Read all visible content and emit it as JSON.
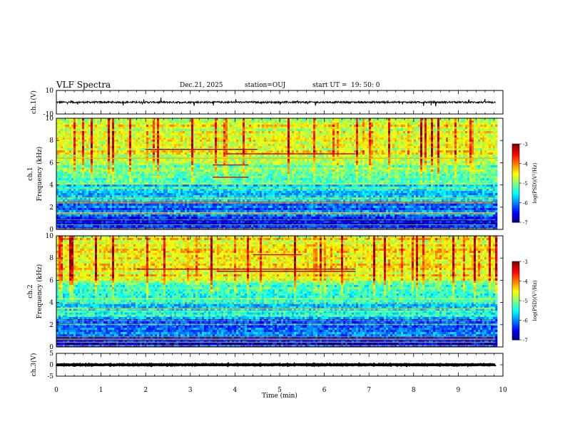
{
  "header": {
    "title": "VLF Spectra",
    "date": "Dec.21, 2025",
    "station": "station=OUJ",
    "start_label": "start UT =",
    "start_time": "19: 50: 0"
  },
  "chart_data": [
    {
      "type": "line",
      "panel": "ch1-waveform",
      "ylabel": "ch.1(V)",
      "ylim": [
        -10,
        10
      ],
      "yticks": [
        "10",
        "-10"
      ],
      "xlim": [
        0,
        10
      ],
      "data_xrange": [
        0,
        9.83
      ],
      "baseline": 0,
      "noise_amplitude": 1.5
    },
    {
      "type": "heatmap",
      "panel": "ch1-spectrogram",
      "ylabel_line1": "ch.1",
      "ylabel_line2": "Frequency (kHz)",
      "ylim": [
        0,
        10
      ],
      "yticks": [
        "0",
        "2",
        "4",
        "6",
        "8",
        "10"
      ],
      "xlim": [
        0,
        10
      ],
      "data_xrange": [
        0,
        9.83
      ],
      "colorbar": {
        "label": "log(PSD)(V²/Hz)",
        "min": -7,
        "max": -3,
        "ticks": [
          "-3",
          "-4",
          "-5",
          "-6",
          "-7"
        ]
      },
      "band_psd": [
        {
          "f_range": [
            0,
            1
          ],
          "psd": -6.5
        },
        {
          "f_range": [
            1,
            2.5
          ],
          "psd": -6.1
        },
        {
          "f_range": [
            2.5,
            4
          ],
          "psd": -5.6
        },
        {
          "f_range": [
            4,
            6
          ],
          "psd": -5.1
        },
        {
          "f_range": [
            6,
            10
          ],
          "psd": -4.6
        }
      ],
      "tonal_lines": [
        {
          "f": 7.2,
          "t_range": [
            2.0,
            4.5
          ],
          "psd": -3.2
        },
        {
          "f": 6.8,
          "t_range": [
            3.8,
            6.7
          ],
          "psd": -3.3
        },
        {
          "f": 5.8,
          "t_range": [
            3.5,
            4.3
          ],
          "psd": -3.4
        },
        {
          "f": 4.7,
          "t_range": [
            3.5,
            4.3
          ],
          "psd": -3.4
        },
        {
          "f": 6.4,
          "t_range": [
            0,
            9.83
          ],
          "psd": -4.2
        }
      ]
    },
    {
      "type": "heatmap",
      "panel": "ch2-spectrogram",
      "ylabel_line1": "ch.2",
      "ylabel_line2": "Frequency (kHz)",
      "ylim": [
        0,
        10
      ],
      "yticks": [
        "0",
        "2",
        "4",
        "6",
        "8",
        "10"
      ],
      "xlim": [
        0,
        10
      ],
      "data_xrange": [
        0,
        9.83
      ],
      "colorbar": {
        "label": "log(PSD)(V²/Hz)",
        "min": -7,
        "max": -3,
        "ticks": [
          "-3",
          "-4",
          "-5",
          "-6",
          "-7"
        ]
      },
      "band_psd": [
        {
          "f_range": [
            0,
            1
          ],
          "psd": -6.5
        },
        {
          "f_range": [
            1,
            2.5
          ],
          "psd": -6.1
        },
        {
          "f_range": [
            2.5,
            4
          ],
          "psd": -5.6
        },
        {
          "f_range": [
            4,
            6
          ],
          "psd": -5.2
        },
        {
          "f_range": [
            6,
            10
          ],
          "psd": -4.5
        }
      ],
      "tonal_lines": [
        {
          "f": 7.0,
          "t_range": [
            1.8,
            6.7
          ],
          "psd": -3.3
        },
        {
          "f": 6.8,
          "t_range": [
            3.6,
            6.7
          ],
          "psd": -3.2
        },
        {
          "f": 8.3,
          "t_range": [
            4.4,
            5.5
          ],
          "psd": -3.4
        },
        {
          "f": 3.5,
          "t_range": [
            0,
            0.7
          ],
          "psd": -4.8
        },
        {
          "f": 3.5,
          "t_range": [
            9.3,
            9.83
          ],
          "psd": -4.8
        }
      ]
    },
    {
      "type": "line",
      "panel": "ch3-waveform",
      "ylabel": "ch.3(V)",
      "ylim": [
        -5,
        5
      ],
      "yticks": [
        "5",
        "0",
        "-5"
      ],
      "xlim": [
        0,
        10
      ],
      "data_xrange": [
        0,
        9.83
      ],
      "baseline": 0,
      "noise_amplitude": 0.3
    }
  ],
  "x_axis": {
    "label": "Time (min)",
    "ticks": [
      "0",
      "1",
      "2",
      "3",
      "4",
      "5",
      "6",
      "7",
      "8",
      "9",
      "10"
    ]
  }
}
